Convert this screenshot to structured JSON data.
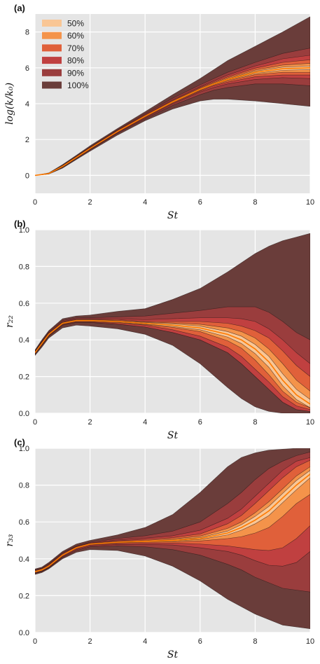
{
  "colors": {
    "background": "#e5e5e5",
    "grid": "#ffffff",
    "band_100": "#6a3d3a",
    "band_90": "#9a3d3d",
    "band_80": "#c04040",
    "band_70": "#e0603a",
    "band_60": "#f4934a",
    "band_50": "#f9c695",
    "median": "#ff7a00"
  },
  "chart_data": [
    {
      "type": "area",
      "panel_label": "(a)",
      "xlabel": "St",
      "ylabel": "log(k/k₀)",
      "xlim": [
        0,
        10
      ],
      "ylim": [
        -1,
        9
      ],
      "xticks": [
        "0",
        "2",
        "4",
        "6",
        "8",
        "10"
      ],
      "yticks": [
        "0",
        "2",
        "4",
        "6",
        "8"
      ],
      "grid": true,
      "legend_position": "top-left",
      "legend": [
        "50%",
        "60%",
        "70%",
        "80%",
        "90%",
        "100%"
      ],
      "x": [
        0,
        0.5,
        1,
        1.5,
        2,
        3,
        4,
        5,
        6,
        6.5,
        7,
        8,
        9,
        10
      ],
      "median": [
        0,
        0.1,
        0.5,
        1.0,
        1.5,
        2.45,
        3.3,
        4.1,
        4.8,
        5.1,
        5.35,
        5.75,
        5.95,
        6.0
      ],
      "bands": [
        {
          "name": "100%",
          "upper": [
            0,
            0.14,
            0.6,
            1.12,
            1.65,
            2.62,
            3.55,
            4.5,
            5.4,
            5.9,
            6.4,
            7.2,
            8.0,
            8.85
          ],
          "lower": [
            0,
            0.07,
            0.4,
            0.88,
            1.35,
            2.25,
            3.05,
            3.7,
            4.15,
            4.25,
            4.25,
            4.15,
            4.0,
            3.85
          ]
        },
        {
          "name": "90%",
          "upper": [
            0,
            0.12,
            0.56,
            1.07,
            1.58,
            2.55,
            3.45,
            4.3,
            5.05,
            5.4,
            5.75,
            6.3,
            6.8,
            7.1
          ],
          "lower": [
            0,
            0.08,
            0.44,
            0.93,
            1.42,
            2.35,
            3.15,
            3.9,
            4.5,
            4.75,
            4.9,
            5.1,
            5.1,
            5.0
          ]
        },
        {
          "name": "80%",
          "upper": [
            0,
            0.115,
            0.54,
            1.05,
            1.55,
            2.52,
            3.4,
            4.22,
            4.95,
            5.28,
            5.6,
            6.1,
            6.5,
            6.7
          ],
          "lower": [
            0,
            0.085,
            0.46,
            0.95,
            1.45,
            2.38,
            3.2,
            3.98,
            4.65,
            4.9,
            5.1,
            5.35,
            5.45,
            5.4
          ]
        },
        {
          "name": "70%",
          "upper": [
            0,
            0.11,
            0.53,
            1.03,
            1.53,
            2.49,
            3.37,
            4.18,
            4.9,
            5.22,
            5.5,
            5.98,
            6.3,
            6.45
          ],
          "lower": [
            0,
            0.09,
            0.47,
            0.97,
            1.47,
            2.41,
            3.23,
            4.02,
            4.7,
            5.0,
            5.2,
            5.5,
            5.6,
            5.6
          ]
        },
        {
          "name": "60%",
          "upper": [
            0,
            0.105,
            0.52,
            1.02,
            1.52,
            2.47,
            3.34,
            4.15,
            4.86,
            5.17,
            5.44,
            5.88,
            6.15,
            6.25
          ],
          "lower": [
            0,
            0.095,
            0.48,
            0.98,
            1.48,
            2.43,
            3.26,
            4.05,
            4.74,
            5.04,
            5.27,
            5.62,
            5.75,
            5.75
          ]
        },
        {
          "name": "50%",
          "upper": [
            0,
            0.102,
            0.51,
            1.01,
            1.51,
            2.46,
            3.32,
            4.12,
            4.83,
            5.13,
            5.39,
            5.81,
            6.04,
            6.1
          ],
          "lower": [
            0,
            0.098,
            0.49,
            0.99,
            1.49,
            2.44,
            3.28,
            4.08,
            4.77,
            5.07,
            5.31,
            5.69,
            5.86,
            5.9
          ]
        }
      ]
    },
    {
      "type": "area",
      "panel_label": "(b)",
      "xlabel": "St",
      "ylabel": "r₂₂",
      "xlim": [
        0,
        10
      ],
      "ylim": [
        0,
        1
      ],
      "xticks": [
        "0",
        "2",
        "4",
        "6",
        "8",
        "10"
      ],
      "yticks": [
        "0.0",
        "0.2",
        "0.4",
        "0.6",
        "0.8",
        "1.0"
      ],
      "grid": true,
      "x": [
        0,
        0.25,
        0.5,
        1,
        1.5,
        2,
        3,
        4,
        5,
        6,
        7,
        7.5,
        8,
        8.5,
        9,
        9.5,
        10
      ],
      "median": [
        0.33,
        0.38,
        0.43,
        0.49,
        0.505,
        0.505,
        0.5,
        0.49,
        0.48,
        0.465,
        0.43,
        0.4,
        0.35,
        0.28,
        0.18,
        0.1,
        0.05
      ],
      "bands": [
        {
          "name": "100%",
          "upper": [
            0.345,
            0.4,
            0.45,
            0.515,
            0.53,
            0.535,
            0.555,
            0.57,
            0.62,
            0.68,
            0.77,
            0.82,
            0.87,
            0.91,
            0.94,
            0.96,
            0.98
          ],
          "lower": [
            0.315,
            0.36,
            0.41,
            0.465,
            0.48,
            0.475,
            0.46,
            0.43,
            0.37,
            0.27,
            0.14,
            0.08,
            0.035,
            0.01,
            0.0,
            0.0,
            0.0
          ]
        },
        {
          "name": "90%",
          "upper": [
            0.34,
            0.395,
            0.445,
            0.505,
            0.52,
            0.52,
            0.525,
            0.53,
            0.545,
            0.56,
            0.58,
            0.58,
            0.58,
            0.55,
            0.5,
            0.44,
            0.4
          ]
        },
        {
          "name": "80%",
          "upper": [
            0.338,
            0.39,
            0.44,
            0.5,
            0.515,
            0.515,
            0.515,
            0.51,
            0.515,
            0.52,
            0.52,
            0.515,
            0.5,
            0.46,
            0.4,
            0.33,
            0.27
          ],
          "lower": [
            0.322,
            0.37,
            0.42,
            0.48,
            0.495,
            0.495,
            0.485,
            0.47,
            0.44,
            0.4,
            0.33,
            0.27,
            0.2,
            0.13,
            0.06,
            0.02,
            0.01
          ]
        },
        {
          "name": "70%",
          "upper": [
            0.336,
            0.388,
            0.437,
            0.497,
            0.512,
            0.512,
            0.51,
            0.5,
            0.5,
            0.5,
            0.49,
            0.475,
            0.45,
            0.41,
            0.34,
            0.26,
            0.2
          ],
          "lower": [
            0.324,
            0.372,
            0.423,
            0.483,
            0.498,
            0.498,
            0.49,
            0.48,
            0.455,
            0.42,
            0.36,
            0.31,
            0.24,
            0.17,
            0.09,
            0.04,
            0.02
          ]
        },
        {
          "name": "60%",
          "upper": [
            0.334,
            0.385,
            0.435,
            0.495,
            0.51,
            0.51,
            0.506,
            0.497,
            0.492,
            0.485,
            0.465,
            0.445,
            0.41,
            0.35,
            0.27,
            0.18,
            0.12
          ],
          "lower": [
            0.326,
            0.375,
            0.425,
            0.485,
            0.5,
            0.5,
            0.494,
            0.483,
            0.468,
            0.445,
            0.395,
            0.355,
            0.29,
            0.21,
            0.12,
            0.06,
            0.03
          ]
        },
        {
          "name": "50%",
          "upper": [
            0.332,
            0.383,
            0.433,
            0.493,
            0.508,
            0.508,
            0.503,
            0.494,
            0.487,
            0.475,
            0.445,
            0.42,
            0.375,
            0.31,
            0.215,
            0.13,
            0.075
          ],
          "lower": [
            0.328,
            0.377,
            0.427,
            0.487,
            0.502,
            0.502,
            0.497,
            0.486,
            0.473,
            0.455,
            0.415,
            0.38,
            0.325,
            0.25,
            0.15,
            0.075,
            0.03
          ]
        }
      ]
    },
    {
      "type": "area",
      "panel_label": "(c)",
      "xlabel": "St",
      "ylabel": "r₃₃",
      "xlim": [
        0,
        10
      ],
      "ylim": [
        0,
        1
      ],
      "xticks": [
        "0",
        "2",
        "4",
        "6",
        "8",
        "10"
      ],
      "yticks": [
        "0.0",
        "0.2",
        "0.4",
        "0.6",
        "0.8",
        "1.0"
      ],
      "grid": true,
      "x": [
        0,
        0.25,
        0.5,
        1,
        1.5,
        2,
        3,
        4,
        5,
        6,
        7,
        7.5,
        8,
        8.5,
        9,
        9.5,
        10
      ],
      "median": [
        0.33,
        0.34,
        0.36,
        0.42,
        0.46,
        0.48,
        0.49,
        0.495,
        0.5,
        0.51,
        0.54,
        0.57,
        0.61,
        0.66,
        0.73,
        0.8,
        0.86
      ],
      "bands": [
        {
          "name": "100%",
          "upper": [
            0.345,
            0.355,
            0.38,
            0.44,
            0.48,
            0.5,
            0.53,
            0.57,
            0.64,
            0.76,
            0.9,
            0.95,
            0.975,
            0.99,
            0.995,
            1.0,
            1.0
          ],
          "lower": [
            0.315,
            0.325,
            0.345,
            0.4,
            0.435,
            0.45,
            0.445,
            0.415,
            0.36,
            0.28,
            0.18,
            0.14,
            0.1,
            0.07,
            0.04,
            0.03,
            0.02
          ]
        },
        {
          "name": "90%",
          "upper": [
            0.34,
            0.35,
            0.373,
            0.433,
            0.47,
            0.49,
            0.51,
            0.525,
            0.55,
            0.6,
            0.7,
            0.76,
            0.83,
            0.89,
            0.93,
            0.96,
            0.98
          ],
          "lower": [
            0.32,
            0.33,
            0.35,
            0.407,
            0.445,
            0.465,
            0.47,
            0.465,
            0.45,
            0.42,
            0.37,
            0.34,
            0.3,
            0.27,
            0.24,
            0.23,
            0.22
          ]
        },
        {
          "name": "80%",
          "upper": [
            0.338,
            0.348,
            0.37,
            0.43,
            0.467,
            0.486,
            0.502,
            0.512,
            0.525,
            0.555,
            0.62,
            0.67,
            0.74,
            0.81,
            0.88,
            0.93,
            0.95
          ],
          "lower": [
            0.322,
            0.332,
            0.352,
            0.41,
            0.45,
            0.47,
            0.478,
            0.478,
            0.475,
            0.46,
            0.44,
            0.42,
            0.39,
            0.365,
            0.36,
            0.38,
            0.44
          ]
        },
        {
          "name": "70%",
          "upper": [
            0.336,
            0.346,
            0.367,
            0.427,
            0.465,
            0.484,
            0.498,
            0.505,
            0.515,
            0.535,
            0.59,
            0.635,
            0.7,
            0.77,
            0.84,
            0.9,
            0.935
          ],
          "lower": [
            0.324,
            0.334,
            0.354,
            0.413,
            0.454,
            0.474,
            0.482,
            0.485,
            0.485,
            0.48,
            0.47,
            0.46,
            0.45,
            0.445,
            0.46,
            0.51,
            0.58
          ]
        },
        {
          "name": "60%",
          "upper": [
            0.334,
            0.344,
            0.364,
            0.424,
            0.463,
            0.482,
            0.494,
            0.5,
            0.508,
            0.523,
            0.565,
            0.6,
            0.65,
            0.71,
            0.78,
            0.85,
            0.9
          ],
          "lower": [
            0.326,
            0.336,
            0.356,
            0.416,
            0.457,
            0.477,
            0.486,
            0.49,
            0.492,
            0.497,
            0.51,
            0.52,
            0.54,
            0.57,
            0.63,
            0.7,
            0.75
          ]
        },
        {
          "name": "50%",
          "upper": [
            0.332,
            0.342,
            0.362,
            0.422,
            0.461,
            0.481,
            0.492,
            0.497,
            0.503,
            0.515,
            0.55,
            0.585,
            0.63,
            0.685,
            0.755,
            0.825,
            0.88
          ],
          "lower": [
            0.328,
            0.338,
            0.358,
            0.418,
            0.459,
            0.479,
            0.488,
            0.493,
            0.497,
            0.505,
            0.53,
            0.555,
            0.59,
            0.635,
            0.705,
            0.775,
            0.84
          ]
        }
      ]
    }
  ]
}
